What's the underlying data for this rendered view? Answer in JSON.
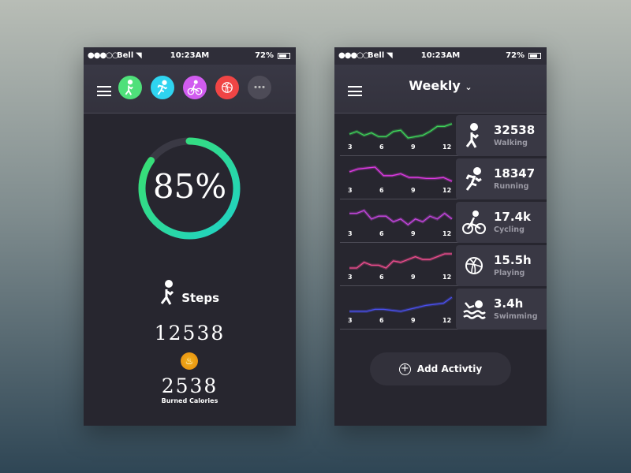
{
  "status": {
    "signal": "●●●○○",
    "carrier": "Bell",
    "time": "10:23AM",
    "battery": "72%"
  },
  "left": {
    "activities": [
      {
        "name": "walking",
        "icon": "walking-icon",
        "color": "#4fe07a"
      },
      {
        "name": "running",
        "icon": "running-icon",
        "color": "#2fd4f0"
      },
      {
        "name": "cycling",
        "icon": "cycling-icon",
        "color": "#d15cf0"
      },
      {
        "name": "playing",
        "icon": "basketball-icon",
        "color": "#f04545"
      },
      {
        "name": "more",
        "icon": "more-icon",
        "color": "#4d4b57"
      }
    ],
    "progress_percent": 85,
    "progress_label": "85%",
    "steps_label": "Steps",
    "steps_value": "12538",
    "calories_value": "2538",
    "calories_label": "Burned Calories"
  },
  "right": {
    "period": "Weekly",
    "x_ticks": [
      "3",
      "6",
      "9",
      "12"
    ],
    "rows": [
      {
        "value": "32538",
        "label": "Walking",
        "icon": "walking-icon",
        "color": "#3ed35a",
        "series": [
          3,
          4,
          2.5,
          3.5,
          2,
          2,
          4,
          4.5,
          1.5,
          2,
          2.5,
          4,
          6,
          6,
          7
        ]
      },
      {
        "value": "18347",
        "label": "Running",
        "icon": "running-icon",
        "color": "#e03ae6",
        "series": [
          5,
          6.5,
          7,
          7.5,
          3,
          3,
          4,
          2,
          2,
          1.5,
          1.5,
          2,
          0
        ]
      },
      {
        "value": "17.4k",
        "label": "Cycling",
        "icon": "cycling-icon",
        "color": "#c646e0",
        "series": [
          5,
          5,
          6,
          3,
          4,
          4,
          2,
          3,
          1,
          3,
          2,
          4,
          3,
          5,
          3
        ]
      },
      {
        "value": "15.5h",
        "label": "Playing",
        "icon": "basketball-icon",
        "color": "#ef4d8f",
        "series": [
          1,
          1,
          3,
          2,
          2,
          1,
          3.5,
          3,
          4,
          5,
          4,
          4,
          5,
          6,
          6
        ]
      },
      {
        "value": "3.4h",
        "label": "Swimming",
        "icon": "swimming-icon",
        "color": "#4a50f0",
        "series": [
          2,
          2,
          2,
          3,
          3,
          2.5,
          2,
          3,
          4,
          5,
          5.5,
          6,
          9
        ]
      }
    ],
    "add_label": "Add Activtiy"
  }
}
